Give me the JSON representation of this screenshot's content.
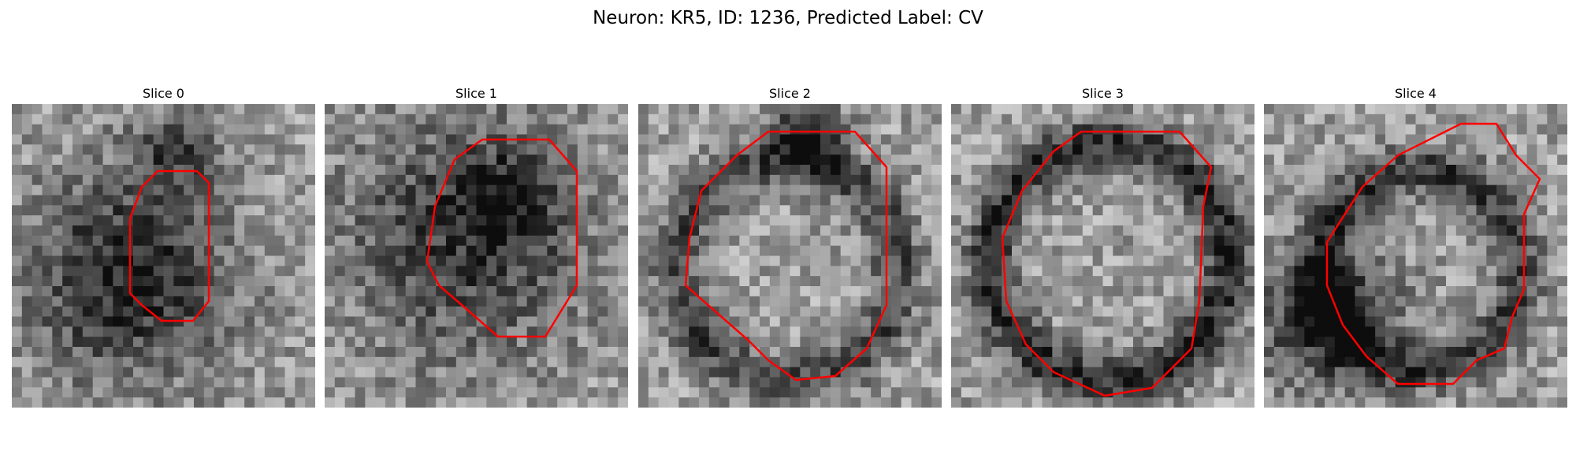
{
  "title": "Neuron: KR5, ID: 1236, Predicted Label: CV",
  "contour_color": "#ff0000",
  "panels": [
    {
      "title": "Slice 0"
    },
    {
      "title": "Slice 1"
    },
    {
      "title": "Slice 2"
    },
    {
      "title": "Slice 3"
    },
    {
      "title": "Slice 4"
    }
  ]
}
